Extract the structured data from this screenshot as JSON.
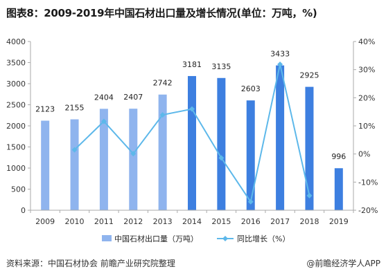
{
  "title": "图表8：2009-2019年中国石材出口量及增长情况(单位：万吨，%)",
  "source": "资料来源：中国石材协会 前瞻产业研究院整理",
  "brand": "@前瞻经济学人APP",
  "colors": {
    "bar_light": "#8fb4ee",
    "bar_dark": "#3d7fe0",
    "line": "#5db8ea",
    "axis": "#aaaaaa"
  },
  "chart_data": {
    "type": "bar+line",
    "categories": [
      "2009",
      "2010",
      "2011",
      "2012",
      "2013",
      "2014",
      "2015",
      "2016",
      "2017",
      "2018",
      "2019"
    ],
    "series": [
      {
        "name": "中国石材出口量（万吨）",
        "type": "bar",
        "axis": "left",
        "values": [
          2123,
          2155,
          2404,
          2407,
          2742,
          3181,
          3135,
          2603,
          3433,
          2925,
          996
        ],
        "labels": [
          "2123",
          "2155",
          "2404",
          "2407",
          "2742",
          "3181",
          "3135",
          "2603",
          "3433",
          "2925",
          "996"
        ]
      },
      {
        "name": "同比增长（%）",
        "type": "line",
        "axis": "right",
        "x": [
          "2010",
          "2011",
          "2012",
          "2013",
          "2014",
          "2015",
          "2016",
          "2017",
          "2018"
        ],
        "values": [
          1.5,
          11.6,
          0.1,
          13.9,
          16.0,
          -1.4,
          -17.0,
          31.9,
          -14.8
        ]
      }
    ],
    "y_left": {
      "min": 0,
      "max": 4000,
      "ticks": [
        0,
        500,
        1000,
        1500,
        2000,
        2500,
        3000,
        3500,
        4000
      ]
    },
    "y_right": {
      "min": -20,
      "max": 40,
      "ticks": [
        "-20%",
        "-10%",
        "0%",
        "10%",
        "20%",
        "30%",
        "40%"
      ]
    },
    "legend": {
      "position": "bottom"
    }
  }
}
